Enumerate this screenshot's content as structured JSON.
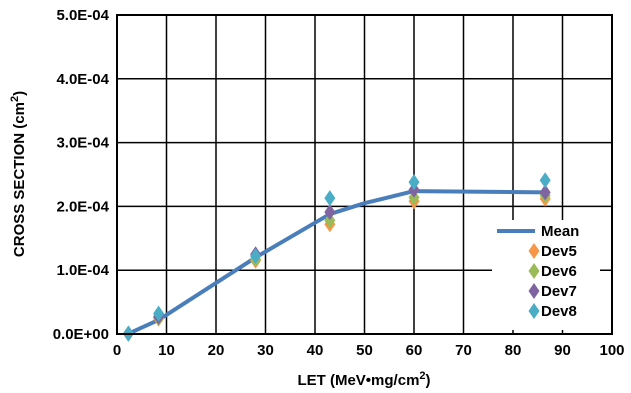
{
  "chart_data": {
    "type": "scatter",
    "xlabel": "LET (MeV•mg/cm",
    "xlabel_sup": "2",
    "xlabel_end": ")",
    "ylabel": "CROSS SECTION (cm",
    "ylabel_sup": "2",
    "ylabel_end": ")",
    "xlim": [
      0,
      100
    ],
    "ylim": [
      0,
      0.0005
    ],
    "x_ticks": [
      0,
      10,
      20,
      30,
      40,
      50,
      60,
      70,
      80,
      90,
      100
    ],
    "x_tick_labels": [
      "0",
      "10",
      "20",
      "30",
      "40",
      "50",
      "60",
      "70",
      "80",
      "90",
      "100"
    ],
    "y_ticks": [
      0,
      0.0001,
      0.0002,
      0.0003,
      0.0004,
      0.0005
    ],
    "y_tick_labels": [
      "0.0E+00",
      "1.0E-04",
      "2.0E-04",
      "3.0E-04",
      "4.0E-04",
      "5.0E-04"
    ],
    "grid": true,
    "legend_position": "right",
    "mean": {
      "name": "Mean",
      "color": "#4a7ebb",
      "x": [
        2.3,
        8.4,
        28,
        43,
        50,
        60,
        86.5
      ],
      "y": [
        5e-07,
        2.2e-05,
        0.00012,
        0.000188,
        0.000205,
        0.000224,
        0.000222
      ]
    },
    "series": [
      {
        "name": "Dev5",
        "color": "#f79646",
        "x": [
          2.3,
          8.4,
          28,
          43,
          60,
          86.5
        ],
        "y": [
          5e-07,
          2.4e-05,
          0.000115,
          0.000172,
          0.000208,
          0.000212
        ]
      },
      {
        "name": "Dev6",
        "color": "#9bbb59",
        "x": [
          2.3,
          8.4,
          28,
          43,
          60,
          86.5
        ],
        "y": [
          5e-07,
          2.5e-05,
          0.000117,
          0.000178,
          0.000214,
          0.000217
        ]
      },
      {
        "name": "Dev7",
        "color": "#8064a2",
        "x": [
          2.3,
          8.4,
          28,
          43,
          60,
          86.5
        ],
        "y": [
          5e-07,
          2.7e-05,
          0.000125,
          0.000191,
          0.000226,
          0.000222
        ]
      },
      {
        "name": "Dev8",
        "color": "#4bacc6",
        "x": [
          2.3,
          8.4,
          28,
          43,
          60,
          86.5
        ],
        "y": [
          5e-07,
          3.2e-05,
          0.000122,
          0.000213,
          0.000238,
          0.000241
        ]
      }
    ]
  }
}
